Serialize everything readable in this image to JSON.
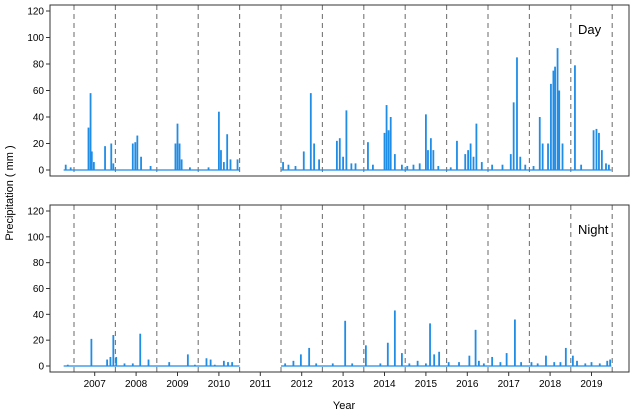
{
  "chart_data": {
    "type": "bar",
    "xlabel": "Year",
    "ylabel": "Precipitation ( mm )",
    "ylim": [
      0,
      120
    ],
    "yticks": [
      0,
      20,
      40,
      60,
      80,
      100,
      120
    ],
    "years": [
      "2007",
      "2008",
      "2009",
      "2010",
      "2011",
      "2012",
      "2013",
      "2014",
      "2015",
      "2016",
      "2017",
      "2018",
      "2019"
    ],
    "series_color": "#1f8ce6",
    "panels": [
      {
        "name": "Day",
        "points": [
          [
            2006.8,
            4
          ],
          [
            2006.92,
            2
          ],
          [
            2007.35,
            32
          ],
          [
            2007.4,
            58
          ],
          [
            2007.43,
            14
          ],
          [
            2007.48,
            6
          ],
          [
            2007.75,
            18
          ],
          [
            2007.9,
            20
          ],
          [
            2007.95,
            5
          ],
          [
            2008.42,
            20
          ],
          [
            2008.48,
            21
          ],
          [
            2008.53,
            26
          ],
          [
            2008.62,
            10
          ],
          [
            2008.85,
            3
          ],
          [
            2009.45,
            20
          ],
          [
            2009.5,
            35
          ],
          [
            2009.55,
            20
          ],
          [
            2009.6,
            8
          ],
          [
            2009.8,
            2
          ],
          [
            2010.25,
            2
          ],
          [
            2010.5,
            44
          ],
          [
            2010.55,
            15
          ],
          [
            2010.62,
            6
          ],
          [
            2010.7,
            27
          ],
          [
            2010.78,
            8
          ],
          [
            2010.95,
            8
          ],
          [
            2012.05,
            6
          ],
          [
            2012.18,
            4
          ],
          [
            2012.35,
            3
          ],
          [
            2012.55,
            14
          ],
          [
            2012.72,
            58
          ],
          [
            2012.8,
            20
          ],
          [
            2012.92,
            8
          ],
          [
            2013.35,
            22
          ],
          [
            2013.42,
            24
          ],
          [
            2013.5,
            10
          ],
          [
            2013.58,
            45
          ],
          [
            2013.7,
            5
          ],
          [
            2013.8,
            5
          ],
          [
            2014.1,
            21
          ],
          [
            2014.22,
            4
          ],
          [
            2014.5,
            28
          ],
          [
            2014.55,
            49
          ],
          [
            2014.6,
            30
          ],
          [
            2014.65,
            40
          ],
          [
            2014.75,
            12
          ],
          [
            2014.92,
            4
          ],
          [
            2015.05,
            3
          ],
          [
            2015.2,
            4
          ],
          [
            2015.35,
            5
          ],
          [
            2015.5,
            42
          ],
          [
            2015.55,
            15
          ],
          [
            2015.62,
            24
          ],
          [
            2015.68,
            15
          ],
          [
            2015.8,
            3
          ],
          [
            2016.1,
            2
          ],
          [
            2016.25,
            22
          ],
          [
            2016.45,
            12
          ],
          [
            2016.52,
            15
          ],
          [
            2016.58,
            20
          ],
          [
            2016.65,
            10
          ],
          [
            2016.72,
            35
          ],
          [
            2016.85,
            6
          ],
          [
            2017.1,
            4
          ],
          [
            2017.35,
            4
          ],
          [
            2017.55,
            12
          ],
          [
            2017.62,
            51
          ],
          [
            2017.7,
            85
          ],
          [
            2017.78,
            10
          ],
          [
            2017.9,
            4
          ],
          [
            2018.1,
            3
          ],
          [
            2018.25,
            40
          ],
          [
            2018.32,
            20
          ],
          [
            2018.45,
            20
          ],
          [
            2018.52,
            65
          ],
          [
            2018.58,
            75
          ],
          [
            2018.62,
            78
          ],
          [
            2018.68,
            92
          ],
          [
            2018.72,
            60
          ],
          [
            2018.8,
            20
          ],
          [
            2019.1,
            79
          ],
          [
            2019.25,
            4
          ],
          [
            2019.55,
            30
          ],
          [
            2019.62,
            31
          ],
          [
            2019.68,
            28
          ],
          [
            2019.75,
            15
          ],
          [
            2019.85,
            5
          ],
          [
            2019.92,
            4
          ]
        ]
      },
      {
        "name": "Night",
        "points": [
          [
            2006.85,
            1
          ],
          [
            2007.42,
            21
          ],
          [
            2007.8,
            5
          ],
          [
            2007.88,
            7
          ],
          [
            2007.95,
            24
          ],
          [
            2008.02,
            7
          ],
          [
            2008.22,
            2
          ],
          [
            2008.42,
            2
          ],
          [
            2008.6,
            25
          ],
          [
            2008.8,
            5
          ],
          [
            2009.3,
            3
          ],
          [
            2009.75,
            9
          ],
          [
            2009.92,
            1
          ],
          [
            2010.2,
            6
          ],
          [
            2010.3,
            5
          ],
          [
            2010.4,
            1
          ],
          [
            2010.62,
            4
          ],
          [
            2010.72,
            3
          ],
          [
            2010.82,
            3
          ],
          [
            2012.1,
            2
          ],
          [
            2012.3,
            4
          ],
          [
            2012.48,
            9
          ],
          [
            2012.68,
            14
          ],
          [
            2012.85,
            2
          ],
          [
            2013.25,
            2
          ],
          [
            2013.55,
            35
          ],
          [
            2013.72,
            2
          ],
          [
            2014.05,
            16
          ],
          [
            2014.4,
            2
          ],
          [
            2014.58,
            18
          ],
          [
            2014.75,
            43
          ],
          [
            2014.92,
            10
          ],
          [
            2015.1,
            2
          ],
          [
            2015.3,
            4
          ],
          [
            2015.5,
            2
          ],
          [
            2015.6,
            33
          ],
          [
            2015.7,
            9
          ],
          [
            2015.82,
            11
          ],
          [
            2016.05,
            3
          ],
          [
            2016.3,
            3
          ],
          [
            2016.55,
            8
          ],
          [
            2016.7,
            28
          ],
          [
            2016.78,
            4
          ],
          [
            2016.9,
            2
          ],
          [
            2017.1,
            7
          ],
          [
            2017.3,
            3
          ],
          [
            2017.45,
            10
          ],
          [
            2017.65,
            36
          ],
          [
            2017.8,
            3
          ],
          [
            2018.05,
            3
          ],
          [
            2018.2,
            2
          ],
          [
            2018.4,
            8
          ],
          [
            2018.6,
            3
          ],
          [
            2018.75,
            3
          ],
          [
            2018.88,
            14
          ],
          [
            2019.05,
            8
          ],
          [
            2019.15,
            4
          ],
          [
            2019.35,
            2
          ],
          [
            2019.5,
            3
          ],
          [
            2019.7,
            2
          ],
          [
            2019.88,
            4
          ],
          [
            2019.95,
            5
          ]
        ]
      }
    ]
  }
}
